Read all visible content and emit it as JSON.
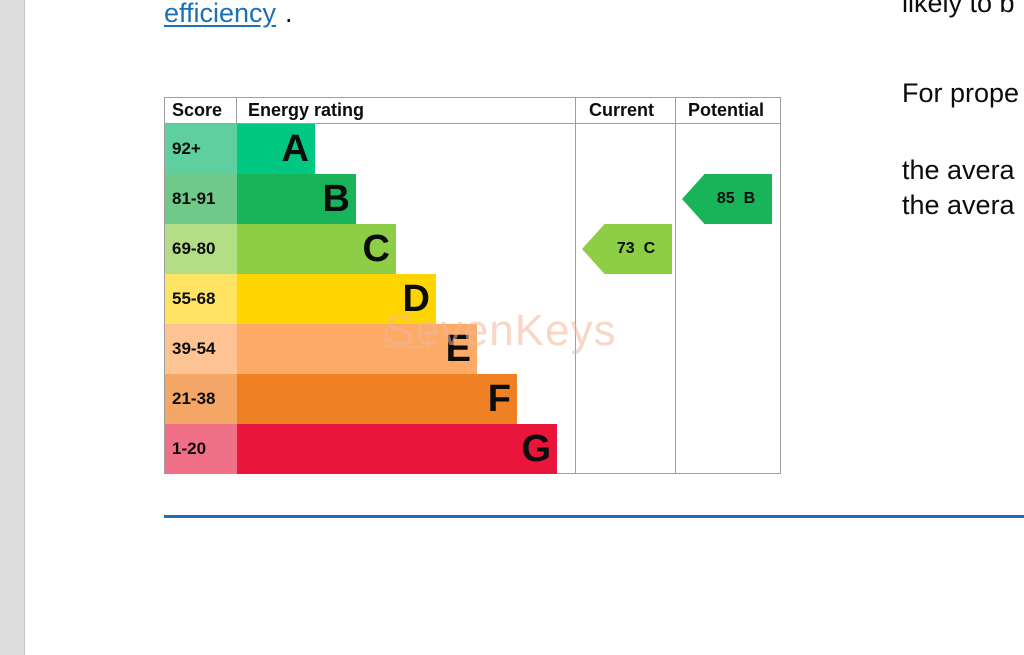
{
  "intro": {
    "link_text": "efficiency",
    "period": "."
  },
  "right_text": {
    "line1": "likely to b",
    "line2": "For prope",
    "line3": "the avera",
    "line4": "the avera"
  },
  "table": {
    "headers": {
      "score": "Score",
      "energy_rating": "Energy rating",
      "current": "Current",
      "potential": "Potential"
    },
    "bands": [
      {
        "score": "92+",
        "letter": "A",
        "color": "#00c781",
        "score_bg": "#5fcf9f"
      },
      {
        "score": "81-91",
        "letter": "B",
        "color": "#19b459",
        "score_bg": "#6fc98b"
      },
      {
        "score": "69-80",
        "letter": "C",
        "color": "#8dce46",
        "score_bg": "#b3de86"
      },
      {
        "score": "55-68",
        "letter": "D",
        "color": "#ffd500",
        "score_bg": "#ffe363"
      },
      {
        "score": "39-54",
        "letter": "E",
        "color": "#fcaa65",
        "score_bg": "#fdc393"
      },
      {
        "score": "21-38",
        "letter": "F",
        "color": "#ef8023",
        "score_bg": "#f3a665"
      },
      {
        "score": "1-20",
        "letter": "G",
        "color": "#e9153b",
        "score_bg": "#f07088"
      }
    ],
    "current": {
      "score": "73",
      "letter": "C",
      "label": "73  C",
      "color": "#8dce46"
    },
    "potential": {
      "score": "85",
      "letter": "B",
      "label": "85  B",
      "color": "#19b459"
    }
  },
  "watermark": "SevenKeys"
}
